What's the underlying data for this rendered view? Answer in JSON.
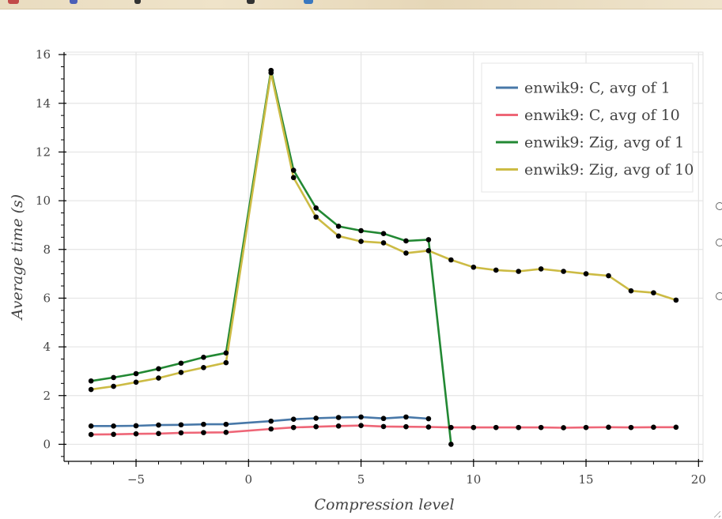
{
  "chart_data": {
    "type": "line",
    "title": "",
    "xlabel": "Compression level",
    "ylabel": "Average time (s)",
    "xlim": [
      -8.2,
      20.2
    ],
    "ylim": [
      -0.7,
      16.1
    ],
    "xticks": [
      -5,
      0,
      5,
      10,
      15,
      20
    ],
    "xtick_labels": [
      "−5",
      "0",
      "5",
      "10",
      "15",
      "20"
    ],
    "yticks": [
      0,
      2,
      4,
      6,
      8,
      10,
      12,
      14,
      16
    ],
    "ytick_labels": [
      "0",
      "2",
      "4",
      "6",
      "8",
      "10",
      "12",
      "14",
      "16"
    ],
    "grid": true,
    "legend_position": "top-right",
    "series": [
      {
        "name": "enwik9: C, avg of 1",
        "color": "#4878a8",
        "x": [
          -7,
          -6,
          -5,
          -4,
          -3,
          -2,
          -1,
          1,
          2,
          3,
          4,
          5,
          6,
          7,
          8
        ],
        "y": [
          0.75,
          0.75,
          0.76,
          0.79,
          0.8,
          0.82,
          0.82,
          0.95,
          1.03,
          1.07,
          1.1,
          1.12,
          1.06,
          1.12,
          1.05
        ]
      },
      {
        "name": "enwik9: C, avg of 10",
        "color": "#ee6677",
        "x": [
          -7,
          -6,
          -5,
          -4,
          -3,
          -2,
          -1,
          1,
          2,
          3,
          4,
          5,
          6,
          7,
          8,
          9,
          10,
          11,
          12,
          13,
          14,
          15,
          16,
          17,
          18,
          19
        ],
        "y": [
          0.4,
          0.41,
          0.43,
          0.44,
          0.47,
          0.48,
          0.49,
          0.63,
          0.69,
          0.72,
          0.75,
          0.77,
          0.73,
          0.72,
          0.71,
          0.69,
          0.69,
          0.69,
          0.69,
          0.69,
          0.68,
          0.69,
          0.7,
          0.69,
          0.7,
          0.7
        ]
      },
      {
        "name": "enwik9: Zig, avg of 1",
        "color": "#228833",
        "x": [
          -7,
          -6,
          -5,
          -4,
          -3,
          -2,
          -1,
          1,
          2,
          3,
          4,
          5,
          6,
          7,
          8,
          9
        ],
        "y": [
          2.6,
          2.74,
          2.9,
          3.1,
          3.33,
          3.57,
          3.75,
          15.35,
          11.25,
          9.7,
          8.95,
          8.77,
          8.65,
          8.35,
          8.4,
          0.0
        ]
      },
      {
        "name": "enwik9: Zig, avg of 10",
        "color": "#ccbb44",
        "x": [
          -7,
          -6,
          -5,
          -4,
          -3,
          -2,
          -1,
          1,
          2,
          3,
          4,
          5,
          6,
          7,
          8,
          9,
          10,
          11,
          12,
          13,
          14,
          15,
          16,
          17,
          18,
          19
        ],
        "y": [
          2.25,
          2.38,
          2.55,
          2.72,
          2.95,
          3.15,
          3.35,
          15.25,
          10.95,
          9.33,
          8.55,
          8.33,
          8.27,
          7.85,
          7.95,
          7.57,
          7.27,
          7.15,
          7.1,
          7.2,
          7.1,
          7.0,
          6.92,
          6.3,
          6.22,
          5.92
        ]
      }
    ]
  }
}
